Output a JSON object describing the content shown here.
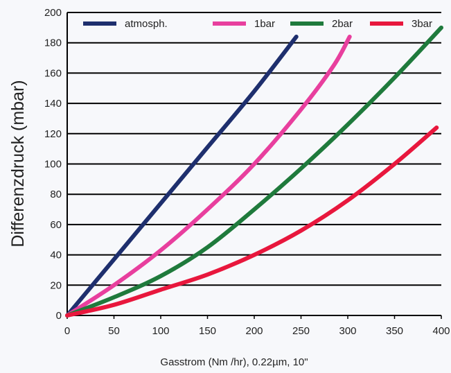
{
  "chart_data": {
    "type": "line",
    "title": "",
    "xlabel": "Gasstrom (Nm /hr), 0.22µm, 10\"",
    "ylabel": "Differenzdruck (mbar)",
    "xlim": [
      0,
      400
    ],
    "ylim": [
      0,
      200
    ],
    "x_ticks": [
      "0",
      "50",
      "100",
      "150",
      "200",
      "250",
      "300",
      "350",
      "400"
    ],
    "y_ticks": [
      "0",
      "20",
      "40",
      "60",
      "80",
      "100",
      "120",
      "140",
      "160",
      "180",
      "200"
    ],
    "grid": "horizontal",
    "legend_position": "top",
    "series": [
      {
        "name": "atmosph.",
        "color": "#1e2f6e",
        "x": [
          0,
          50,
          100,
          150,
          200,
          245
        ],
        "y": [
          0,
          37,
          74,
          111,
          148,
          184
        ]
      },
      {
        "name": "1bar",
        "color": "#e83f9e",
        "x": [
          0,
          50,
          100,
          150,
          200,
          250,
          285,
          302
        ],
        "y": [
          0,
          20,
          43,
          70,
          100,
          136,
          165,
          184
        ]
      },
      {
        "name": "2bar",
        "color": "#1f7a3c",
        "x": [
          0,
          50,
          100,
          150,
          200,
          250,
          300,
          350,
          400
        ],
        "y": [
          0,
          12,
          26,
          45,
          70,
          97,
          126,
          157,
          190
        ]
      },
      {
        "name": "3bar",
        "color": "#e8173d",
        "x": [
          0,
          50,
          100,
          150,
          200,
          250,
          300,
          350,
          395
        ],
        "y": [
          0,
          7,
          17,
          27,
          40,
          56,
          76,
          100,
          124
        ]
      }
    ]
  }
}
